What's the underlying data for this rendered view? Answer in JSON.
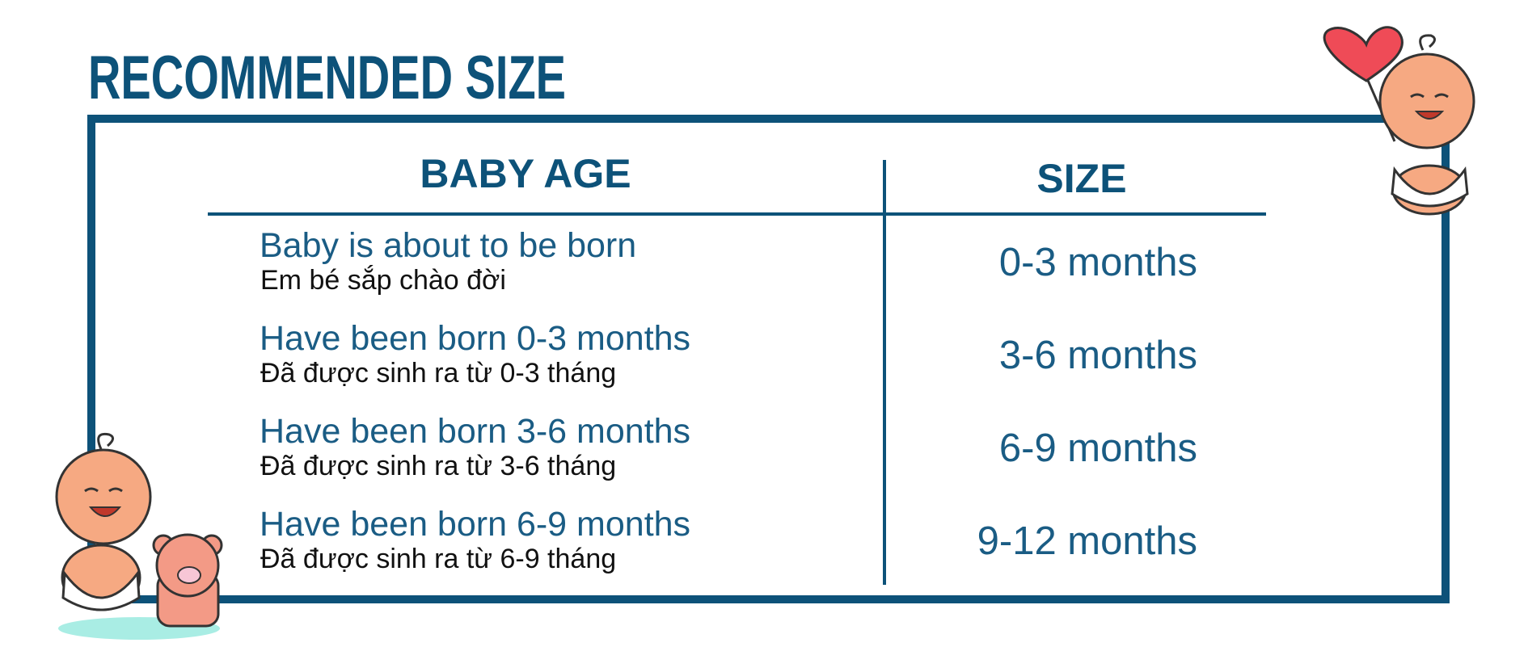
{
  "header": {
    "title": "RECOMMENDED  SIZE"
  },
  "table": {
    "columns": [
      "BABY AGE",
      "SIZE"
    ],
    "rows": [
      {
        "age": "Baby is about to be born",
        "age_vi": "Em bé sắp chào đời",
        "size": "0-3 months"
      },
      {
        "age": "Have been born 0-3 months",
        "age_vi": "Đã được sinh ra từ 0-3 tháng",
        "size": "3-6 months"
      },
      {
        "age": "Have been born 3-6 months",
        "age_vi": "Đã được sinh ra từ 3-6 tháng",
        "size": "6-9 months"
      },
      {
        "age": "Have been born 6-9 months",
        "age_vi": "Đã được sinh ra từ 6-9 tháng",
        "size": "9-12 months"
      }
    ]
  }
}
